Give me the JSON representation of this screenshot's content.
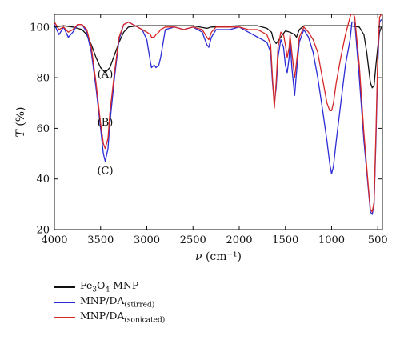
{
  "chart_data": {
    "type": "line",
    "xlabel_var": "ν",
    "xlabel_unit": "(cm⁻¹)",
    "ylabel_var": "T",
    "ylabel_unit": "(%)",
    "xlim": [
      4000,
      450
    ],
    "ylim": [
      20,
      105
    ],
    "x_ticks": [
      "4000",
      "3500",
      "3000",
      "2500",
      "2000",
      "1500",
      "1000",
      "500"
    ],
    "y_ticks": [
      "20",
      "40",
      "60",
      "80",
      "100"
    ],
    "x_tick_values": [
      4000,
      3500,
      3000,
      2500,
      2000,
      1500,
      1000,
      500
    ],
    "y_tick_values": [
      20,
      40,
      60,
      80,
      100
    ],
    "annotations": [
      {
        "text": "(A)",
        "x": 3450,
        "y": 80
      },
      {
        "text": "(B)",
        "x": 3450,
        "y": 61
      },
      {
        "text": "(C)",
        "x": 3450,
        "y": 42
      }
    ],
    "series": [
      {
        "name": "Fe₃O₄ MNP",
        "legend_main": "Fe",
        "legend_sub1": "3",
        "legend_mid": "O",
        "legend_sub2": "4",
        "legend_tail": " MNP",
        "color": "#111111",
        "x": [
          4000,
          3900,
          3800,
          3700,
          3650,
          3600,
          3550,
          3500,
          3450,
          3400,
          3350,
          3300,
          3250,
          3200,
          3100,
          3000,
          2900,
          2800,
          2500,
          2350,
          2300,
          2000,
          1800,
          1700,
          1650,
          1630,
          1600,
          1550,
          1500,
          1450,
          1400,
          1380,
          1350,
          1300,
          1200,
          1100,
          1000,
          900,
          800,
          700,
          650,
          620,
          600,
          580,
          560,
          540,
          520,
          500,
          480,
          460
        ],
        "y": [
          100,
          100.5,
          100,
          99,
          97,
          93,
          88,
          84,
          82,
          84,
          89,
          94,
          98,
          100,
          100.5,
          100.5,
          100.5,
          100.5,
          100.5,
          99.5,
          100,
          100.5,
          100.5,
          99.5,
          98,
          95,
          93.5,
          96,
          98.5,
          98,
          97,
          96,
          99,
          100.5,
          100.5,
          100.5,
          100.5,
          100.5,
          100.5,
          100,
          97,
          90,
          84,
          78,
          76,
          77,
          85,
          92,
          98,
          100
        ]
      },
      {
        "name": "MNP/DA(stirred)",
        "legend_main": "MNP/DA",
        "legend_sub1": "(stirred)",
        "legend_mid": "",
        "legend_sub2": "",
        "legend_tail": "",
        "color": "#2b2bd6",
        "x": [
          4000,
          3950,
          3900,
          3850,
          3800,
          3750,
          3700,
          3650,
          3600,
          3550,
          3500,
          3470,
          3450,
          3420,
          3400,
          3350,
          3300,
          3250,
          3200,
          3150,
          3100,
          3050,
          3000,
          2960,
          2950,
          2920,
          2900,
          2870,
          2850,
          2800,
          2700,
          2600,
          2500,
          2400,
          2350,
          2330,
          2300,
          2250,
          2100,
          2000,
          1900,
          1800,
          1750,
          1700,
          1660,
          1640,
          1620,
          1600,
          1580,
          1550,
          1520,
          1500,
          1480,
          1460,
          1450,
          1430,
          1400,
          1380,
          1350,
          1300,
          1250,
          1200,
          1150,
          1100,
          1050,
          1020,
          1000,
          980,
          950,
          900,
          850,
          800,
          780,
          750,
          700,
          650,
          600,
          580,
          560,
          540,
          520,
          500,
          480,
          460
        ],
        "y": [
          101,
          97,
          100,
          96,
          98,
          101,
          101,
          98,
          90,
          76,
          60,
          50,
          47,
          52,
          62,
          80,
          95,
          101,
          102,
          101,
          100,
          99,
          95,
          86,
          84,
          85,
          84,
          85,
          88,
          99,
          100,
          99,
          100,
          98,
          93,
          92,
          96,
          99,
          99,
          100,
          98,
          96,
          95,
          94,
          90,
          78,
          70,
          76,
          88,
          95,
          92,
          85,
          82,
          88,
          95,
          84,
          73,
          82,
          94,
          99,
          96,
          90,
          80,
          68,
          55,
          46,
          42,
          45,
          55,
          70,
          85,
          95,
          102,
          102,
          80,
          55,
          35,
          27,
          26,
          30,
          55,
          85,
          102,
          103
        ]
      },
      {
        "name": "MNP/DA(sonicated)",
        "legend_main": "MNP/DA",
        "legend_sub1": "(sonicated)",
        "legend_mid": "",
        "legend_sub2": "",
        "legend_tail": "",
        "color": "#d62828",
        "x": [
          4000,
          3950,
          3900,
          3850,
          3800,
          3750,
          3700,
          3650,
          3600,
          3550,
          3500,
          3470,
          3450,
          3420,
          3400,
          3350,
          3300,
          3250,
          3200,
          3150,
          3100,
          3050,
          3000,
          2960,
          2950,
          2920,
          2900,
          2870,
          2850,
          2800,
          2700,
          2600,
          2500,
          2400,
          2350,
          2330,
          2300,
          2250,
          2100,
          2000,
          1900,
          1800,
          1750,
          1700,
          1660,
          1640,
          1620,
          1600,
          1580,
          1550,
          1520,
          1500,
          1480,
          1460,
          1450,
          1430,
          1400,
          1380,
          1350,
          1300,
          1250,
          1200,
          1150,
          1100,
          1050,
          1020,
          1000,
          980,
          950,
          900,
          850,
          800,
          780,
          750,
          700,
          650,
          600,
          580,
          560,
          540,
          520,
          500,
          480,
          460
        ],
        "y": [
          102,
          99,
          100,
          98,
          99,
          101,
          101,
          99,
          92,
          78,
          62,
          54,
          52,
          56,
          66,
          82,
          96,
          101,
          102,
          101,
          100,
          99,
          98,
          97,
          96,
          96,
          97,
          98,
          99,
          100,
          100,
          99,
          100,
          99,
          96,
          95,
          98,
          100,
          100,
          100,
          99,
          99,
          98,
          97,
          93,
          80,
          68,
          78,
          92,
          98,
          97,
          93,
          88,
          92,
          97,
          90,
          80,
          86,
          96,
          100,
          98,
          95,
          90,
          80,
          70,
          67,
          67,
          70,
          78,
          88,
          97,
          104,
          106,
          104,
          85,
          58,
          36,
          28,
          27,
          31,
          58,
          88,
          104,
          105
        ]
      }
    ]
  }
}
